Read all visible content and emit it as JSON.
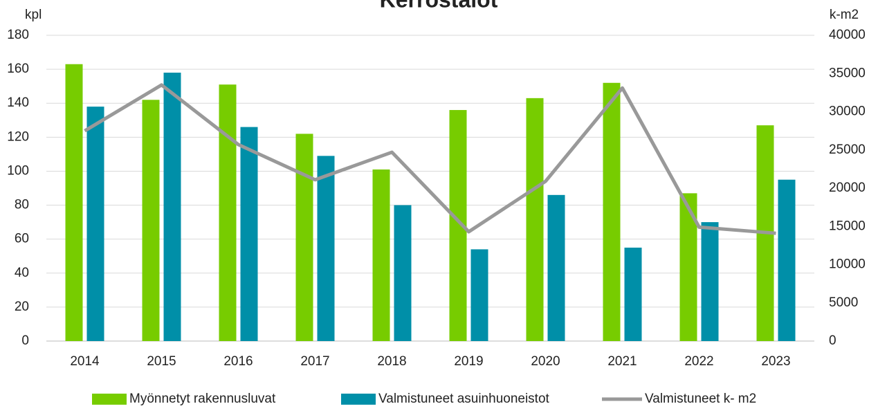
{
  "chart_data": {
    "type": "bar",
    "title": "Kerrostalot",
    "ylabel": "kpl",
    "y2label": "k-m2",
    "categories": [
      "2014",
      "2015",
      "2016",
      "2017",
      "2018",
      "2019",
      "2020",
      "2021",
      "2022",
      "2023"
    ],
    "series": [
      {
        "name": "Myönnetyt rakennusluvat",
        "color": "#77cc00",
        "type": "bar",
        "values": [
          163,
          142,
          151,
          122,
          101,
          136,
          143,
          152,
          87,
          127
        ]
      },
      {
        "name": "Valmistuneet asuinhuoneistot",
        "color": "#008fa8",
        "type": "bar",
        "values": [
          138,
          158,
          126,
          109,
          80,
          54,
          86,
          55,
          70,
          95
        ]
      },
      {
        "name": "Valmistuneet k- m2",
        "color": "#999999",
        "type": "line",
        "axis": "y2",
        "values": [
          27500,
          33500,
          25700,
          21100,
          24700,
          14300,
          20900,
          33100,
          14900,
          14100
        ]
      }
    ],
    "ylim": [
      0,
      180
    ],
    "yticks": [
      0,
      20,
      40,
      60,
      80,
      100,
      120,
      140,
      160,
      180
    ],
    "y2lim": [
      0,
      40000
    ],
    "y2ticks": [
      0,
      5000,
      10000,
      15000,
      20000,
      25000,
      30000,
      35000,
      40000
    ],
    "grid": true,
    "legend": "bottom"
  }
}
